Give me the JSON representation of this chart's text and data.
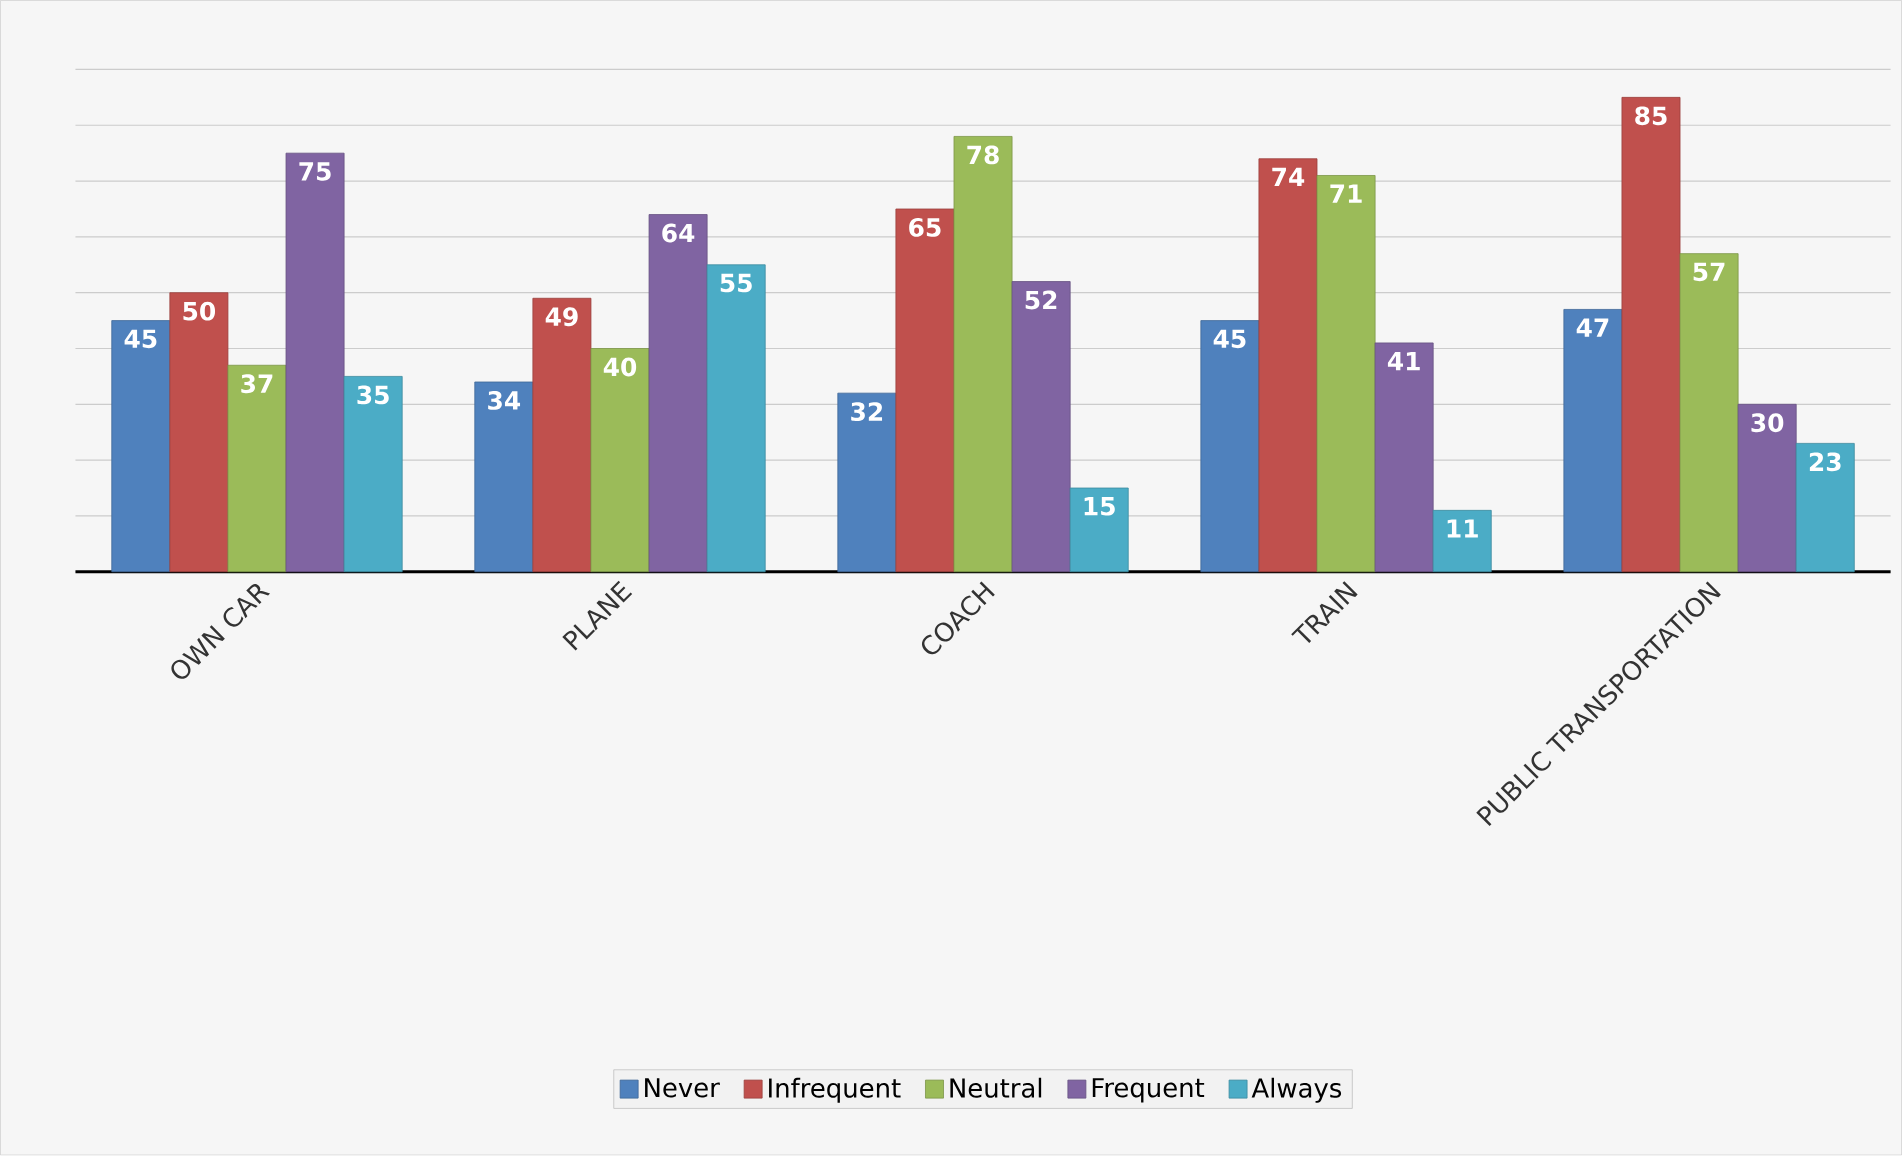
{
  "chart_data": {
    "type": "bar",
    "categories": [
      "OWN CAR",
      "PLANE",
      "COACH",
      "TRAIN",
      "PUBLIC TRANSPORTATION"
    ],
    "series": [
      {
        "name": "Never",
        "color": "#4f81bd",
        "values": [
          45,
          34,
          32,
          45,
          47
        ]
      },
      {
        "name": "Infrequent",
        "color": "#c0504d",
        "values": [
          50,
          49,
          65,
          74,
          85
        ]
      },
      {
        "name": "Neutral",
        "color": "#9bbb59",
        "values": [
          37,
          40,
          78,
          71,
          57
        ]
      },
      {
        "name": "Frequent",
        "color": "#8064a2",
        "values": [
          75,
          64,
          52,
          41,
          30
        ]
      },
      {
        "name": "Always",
        "color": "#4bacc6",
        "values": [
          35,
          55,
          15,
          11,
          23
        ]
      }
    ],
    "ylim": [
      0,
      90
    ],
    "yticks": [
      {
        "value": 0,
        "label": null
      },
      {
        "value": 10,
        "label": null
      },
      {
        "value": 20,
        "label": null
      },
      {
        "value": 30,
        "label": null
      },
      {
        "value": 40,
        "label": null
      },
      {
        "value": 50,
        "label": null
      },
      {
        "value": 60,
        "label": null
      },
      {
        "value": 70,
        "label": null
      },
      {
        "value": 80,
        "label": null
      },
      {
        "value": 90,
        "label": null
      }
    ],
    "grid": "y",
    "legend": "bottom",
    "data_labels": true,
    "tick_labels": "x"
  }
}
